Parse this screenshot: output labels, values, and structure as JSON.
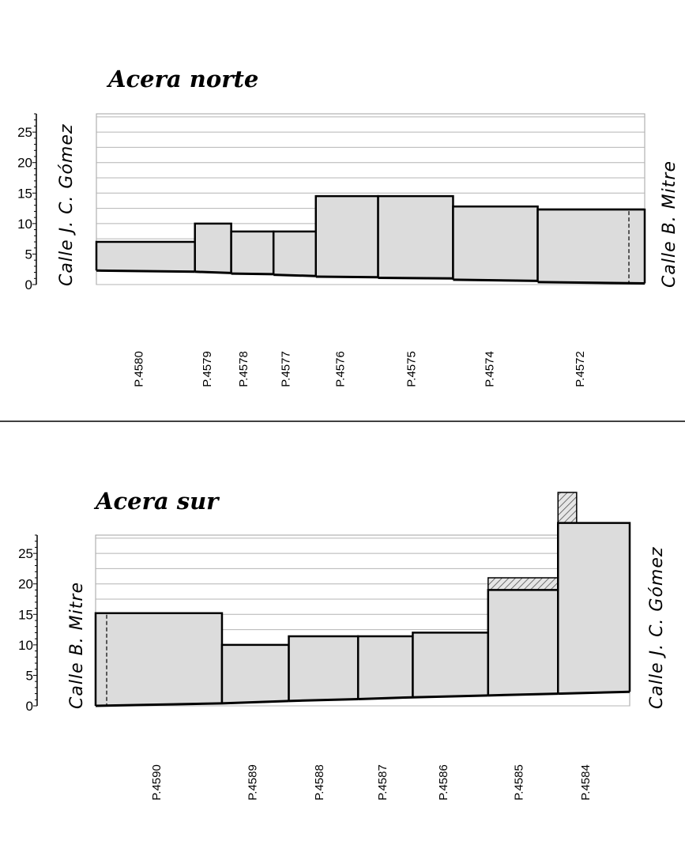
{
  "chart_data": [
    {
      "type": "bar",
      "title": "Acera norte",
      "ylim": [
        0,
        28
      ],
      "yticks": [
        "0",
        "5",
        "10",
        "15",
        "20",
        "25"
      ],
      "grid": true,
      "left_label": "Calle J. C. Gómez",
      "right_label": "Calle B. Mitre",
      "categories": [
        "P.4580",
        "P.4579",
        "P.4578",
        "P.4577",
        "P.4576",
        "P.4575",
        "P.4574",
        "P.4572"
      ],
      "widths": [
        16.3,
        6,
        7,
        7,
        10.3,
        12.4,
        14,
        17.7
      ],
      "values": [
        7,
        10,
        8.7,
        8.7,
        14.5,
        14.5,
        12.8,
        12.3
      ],
      "base_start": [
        2.3,
        2.1,
        1.8,
        1.6,
        1.3,
        1.1,
        0.8,
        0.4
      ],
      "base_end": [
        2.1,
        1.9,
        1.7,
        1.4,
        1.2,
        1.0,
        0.6,
        0.2
      ],
      "label_offsets": [
        7,
        2,
        2,
        2,
        4,
        5.5,
        6,
        7
      ]
    },
    {
      "type": "bar",
      "title": "Acera sur",
      "ylim": [
        0,
        28
      ],
      "yticks": [
        "0",
        "5",
        "10",
        "15",
        "20",
        "25"
      ],
      "grid": true,
      "left_label": "Calle B. Mitre",
      "right_label": "Calle J. C. Gómez",
      "categories": [
        "P.4590",
        "P.4589",
        "P.4588",
        "P.4587",
        "P.4586",
        "P.4585",
        "P.4584"
      ],
      "widths": [
        20.8,
        11,
        11.4,
        9,
        12.4,
        11.5,
        11.8
      ],
      "values": [
        15.2,
        10,
        11.4,
        11.4,
        12,
        19,
        30
      ],
      "base_start": [
        0,
        0.4,
        0.8,
        1.1,
        1.4,
        1.7,
        2.0
      ],
      "base_end": [
        0.4,
        0.8,
        1.1,
        1.4,
        1.7,
        2.0,
        2.3
      ],
      "hatched_extension": [
        null,
        null,
        null,
        null,
        null,
        21,
        35
      ],
      "hatched_indices": [
        5,
        6
      ],
      "label_offsets": [
        10,
        5,
        5,
        4,
        5,
        5,
        4.5
      ]
    }
  ]
}
